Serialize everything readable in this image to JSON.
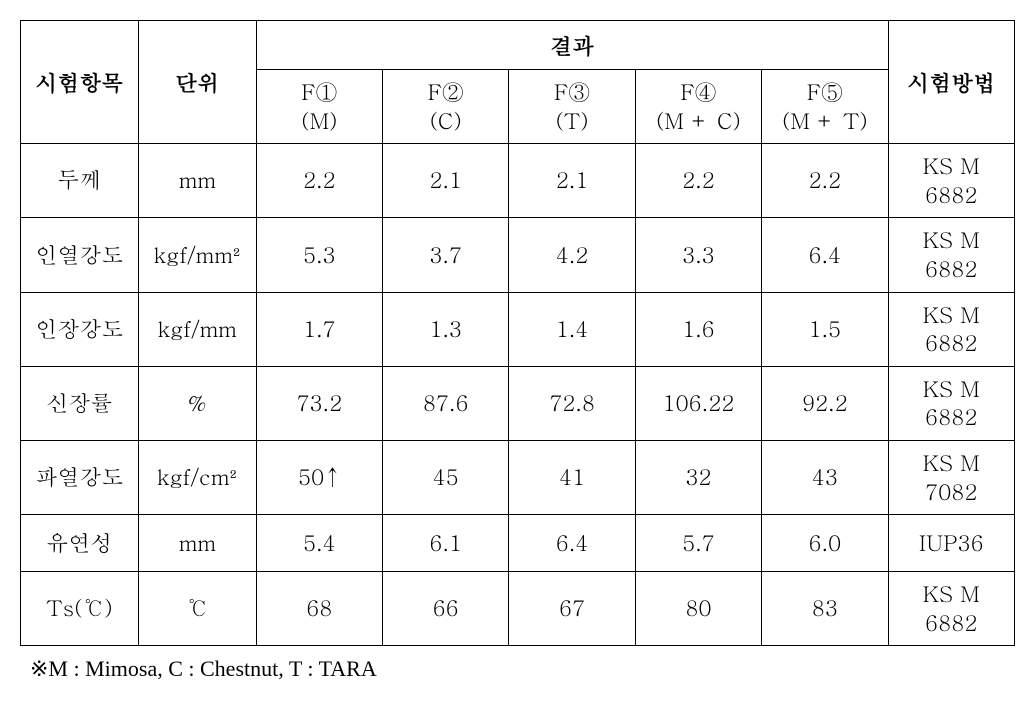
{
  "table": {
    "headers": {
      "test_item": "시험항목",
      "unit": "단위",
      "results": "결과",
      "method": "시험방법",
      "cols": [
        {
          "top": "F①",
          "bottom": "(M)"
        },
        {
          "top": "F②",
          "bottom": "(C)"
        },
        {
          "top": "F③",
          "bottom": "(T)"
        },
        {
          "top": "F④",
          "bottom": "(M + C)"
        },
        {
          "top": "F⑤",
          "bottom": "(M + T)"
        }
      ]
    },
    "rows": [
      {
        "item": "두께",
        "unit": "mm",
        "v": [
          "2.2",
          "2.1",
          "2.1",
          "2.2",
          "2.2"
        ],
        "method_top": "KS M",
        "method_bot": "6882"
      },
      {
        "item": "인열강도",
        "unit": "kgf/mm²",
        "v": [
          "5.3",
          "3.7",
          "4.2",
          "3.3",
          "6.4"
        ],
        "method_top": "KS M",
        "method_bot": "6882"
      },
      {
        "item": "인장강도",
        "unit": "kgf/mm",
        "v": [
          "1.7",
          "1.3",
          "1.4",
          "1.6",
          "1.5"
        ],
        "method_top": "KS M",
        "method_bot": "6882"
      },
      {
        "item": "신장률",
        "unit": "%",
        "v": [
          "73.2",
          "87.6",
          "72.8",
          "106.22",
          "92.2"
        ],
        "method_top": "KS M",
        "method_bot": "6882"
      },
      {
        "item": "파열강도",
        "unit": "kgf/cm²",
        "v": [
          "50↑",
          "45",
          "41",
          "32",
          "43"
        ],
        "method_top": "KS M",
        "method_bot": "7082"
      },
      {
        "item": "유연성",
        "unit": "mm",
        "v": [
          "5.4",
          "6.1",
          "6.4",
          "5.7",
          "6.0"
        ],
        "method_top": "IUP36",
        "method_bot": ""
      },
      {
        "item": "Ts(℃)",
        "unit": "℃",
        "v": [
          "68",
          "66",
          "67",
          "80",
          "83"
        ],
        "method_top": "KS M",
        "method_bot": "6882"
      }
    ]
  },
  "footnote": "※M : Mimosa, C : Chestnut, T : TARA"
}
